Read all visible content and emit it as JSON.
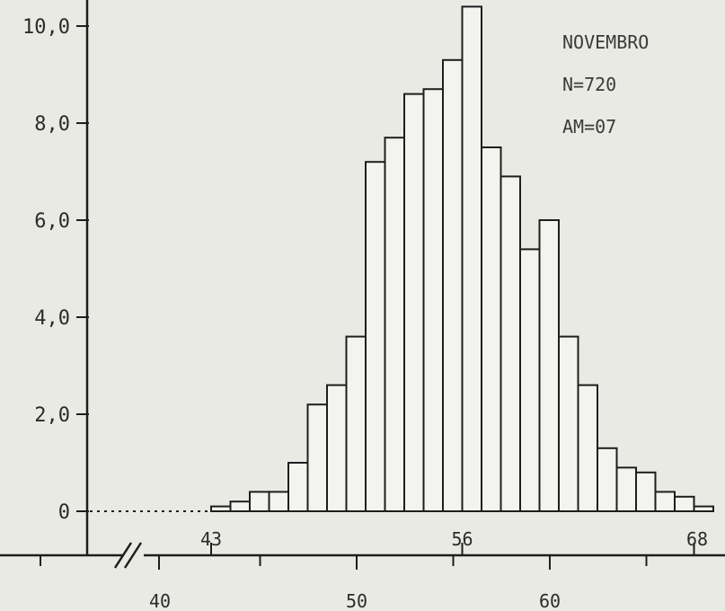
{
  "chart_data": {
    "type": "bar",
    "annotations": [
      "NOVEMBRO",
      "N=720",
      "AM=07"
    ],
    "y_ticks": [
      "10,0",
      "8,0",
      "6,0",
      "4,0",
      "2,0",
      "0"
    ],
    "y_tick_values": [
      10,
      8,
      6,
      4,
      2,
      0
    ],
    "inner_x_labels": [
      {
        "text": "43",
        "value": 43
      },
      {
        "text": "56",
        "value": 56
      },
      {
        "text": "68",
        "value": 68
      }
    ],
    "outer_x_labels": [
      {
        "text": "40",
        "value": 40
      },
      {
        "text": "50",
        "value": 50
      },
      {
        "text": "60",
        "value": 60
      }
    ],
    "axis_break": true,
    "zero_dotted_baseline": true,
    "ylim": [
      0,
      10.5
    ],
    "bins": [
      43,
      44,
      45,
      46,
      47,
      48,
      49,
      50,
      51,
      52,
      53,
      54,
      55,
      56,
      57,
      58,
      59,
      60,
      61,
      62,
      63,
      64,
      65,
      66,
      67,
      68
    ],
    "values": [
      0.1,
      0.2,
      0.4,
      0.4,
      1.0,
      2.2,
      2.6,
      3.6,
      7.2,
      7.7,
      8.6,
      8.7,
      9.3,
      10.4,
      7.5,
      6.9,
      5.4,
      6.0,
      3.6,
      2.6,
      1.3,
      0.9,
      0.8,
      0.4,
      0.3,
      0.1
    ]
  }
}
